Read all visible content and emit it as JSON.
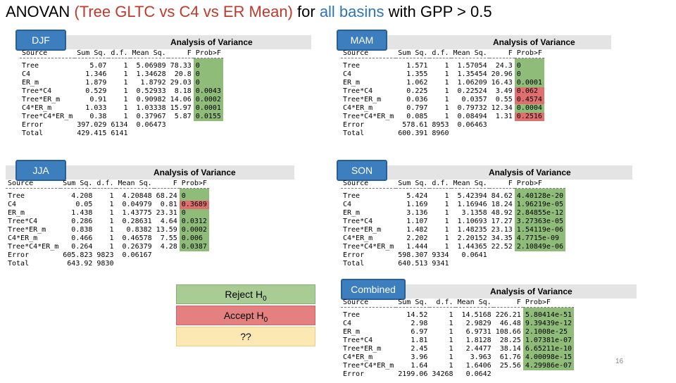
{
  "title": {
    "part1": "ANOVAN ",
    "part2": "(Tree GLTC vs C4 vs ER Mean)",
    "part3": " for ",
    "part4": "all basins",
    "part5": " with GPP > 0.5"
  },
  "panels": [
    {
      "season": "DJF",
      "heading": "Analysis of Variance",
      "columns": [
        "Source",
        "Sum Sq.",
        "d.f.",
        "Mean Sq.",
        "F",
        "Prob>F"
      ],
      "rows": [
        {
          "source": "Tree",
          "ss": "5.07",
          "df": "1",
          "ms": "5.06989",
          "f": "78.33",
          "p": "0",
          "hl": "g"
        },
        {
          "source": "C4",
          "ss": "1.346",
          "df": "1",
          "ms": "1.34628",
          "f": "20.8",
          "p": "0",
          "hl": "g"
        },
        {
          "source": "ER_m",
          "ss": "1.879",
          "df": "1",
          "ms": "1.8792",
          "f": "29.03",
          "p": "0",
          "hl": "g"
        },
        {
          "source": "Tree*C4",
          "ss": "0.529",
          "df": "1",
          "ms": "0.52933",
          "f": "8.18",
          "p": "0.0043",
          "hl": "g"
        },
        {
          "source": "Tree*ER_m",
          "ss": "0.91",
          "df": "1",
          "ms": "0.90982",
          "f": "14.06",
          "p": "0.0002",
          "hl": "g"
        },
        {
          "source": "C4*ER_m",
          "ss": "1.033",
          "df": "1",
          "ms": "1.03338",
          "f": "15.97",
          "p": "0.0001",
          "hl": "g"
        },
        {
          "source": "Tree*C4*ER_m",
          "ss": "0.38",
          "df": "1",
          "ms": "0.37967",
          "f": "5.87",
          "p": "0.0155",
          "hl": "g"
        },
        {
          "source": "Error",
          "ss": "397.029",
          "df": "6134",
          "ms": "0.06473",
          "f": "",
          "p": "",
          "hl": ""
        },
        {
          "source": "Total",
          "ss": "429.415",
          "df": "6141",
          "ms": "",
          "f": "",
          "p": "",
          "hl": ""
        }
      ]
    },
    {
      "season": "MAM",
      "heading": "Analysis of Variance",
      "columns": [
        "Source",
        "Sum Sq.",
        "d.f.",
        "Mean Sq.",
        "F",
        "Prob>F"
      ],
      "rows": [
        {
          "source": "Tree",
          "ss": "1.571",
          "df": "1",
          "ms": "1.57054",
          "f": "24.3",
          "p": "0",
          "hl": "g"
        },
        {
          "source": "C4",
          "ss": "1.355",
          "df": "1",
          "ms": "1.35454",
          "f": "20.96",
          "p": "0",
          "hl": "g"
        },
        {
          "source": "ER_m",
          "ss": "1.062",
          "df": "1",
          "ms": "1.06209",
          "f": "16.43",
          "p": "0.0001",
          "hl": "g"
        },
        {
          "source": "Tree*C4",
          "ss": "0.225",
          "df": "1",
          "ms": "0.22524",
          "f": "3.49",
          "p": "0.062",
          "hl": "r"
        },
        {
          "source": "Tree*ER_m",
          "ss": "0.036",
          "df": "1",
          "ms": "0.0357",
          "f": "0.55",
          "p": "0.4574",
          "hl": "r"
        },
        {
          "source": "C4*ER_m",
          "ss": "0.797",
          "df": "1",
          "ms": "0.79732",
          "f": "12.34",
          "p": "0.0004",
          "hl": "g"
        },
        {
          "source": "Tree*C4*ER_m",
          "ss": "0.085",
          "df": "1",
          "ms": "0.08494",
          "f": "1.31",
          "p": "0.2516",
          "hl": "r"
        },
        {
          "source": "Error",
          "ss": "578.61",
          "df": "8953",
          "ms": "0.06463",
          "f": "",
          "p": "",
          "hl": ""
        },
        {
          "source": "Total",
          "ss": "600.391",
          "df": "8960",
          "ms": "",
          "f": "",
          "p": "",
          "hl": ""
        }
      ]
    },
    {
      "season": "JJA",
      "heading": "Analysis of Variance",
      "columns": [
        "Source",
        "Sum Sq.",
        "d.f.",
        "Mean Sq.",
        "F",
        "Prob>F"
      ],
      "rows": [
        {
          "source": "Tree",
          "ss": "4.208",
          "df": "1",
          "ms": "4.20848",
          "f": "68.24",
          "p": "0",
          "hl": "g"
        },
        {
          "source": "C4",
          "ss": "0.05",
          "df": "1",
          "ms": "0.04979",
          "f": "0.81",
          "p": "0.3689",
          "hl": "r"
        },
        {
          "source": "ER_m",
          "ss": "1.438",
          "df": "1",
          "ms": "1.43775",
          "f": "23.31",
          "p": "0",
          "hl": "g"
        },
        {
          "source": "Tree*C4",
          "ss": "0.286",
          "df": "1",
          "ms": "0.28631",
          "f": "4.64",
          "p": "0.0312",
          "hl": "g"
        },
        {
          "source": "Tree*ER_m",
          "ss": "0.838",
          "df": "1",
          "ms": "0.8382",
          "f": "13.59",
          "p": "0.0002",
          "hl": "g"
        },
        {
          "source": "C4*ER_m",
          "ss": "0.466",
          "df": "1",
          "ms": "0.46578",
          "f": "7.55",
          "p": "0.006",
          "hl": "g"
        },
        {
          "source": "Tree*C4*ER_m",
          "ss": "0.264",
          "df": "1",
          "ms": "0.26379",
          "f": "4.28",
          "p": "0.0387",
          "hl": "g"
        },
        {
          "source": "Error",
          "ss": "605.823",
          "df": "9823",
          "ms": "0.06167",
          "f": "",
          "p": "",
          "hl": ""
        },
        {
          "source": "Total",
          "ss": "643.92",
          "df": "9830",
          "ms": "",
          "f": "",
          "p": "",
          "hl": ""
        }
      ]
    },
    {
      "season": "SON",
      "heading": "Analysis of Variance",
      "columns": [
        "Source",
        "Sum Sq.",
        "d.f.",
        "Mean Sq.",
        "F",
        "Prob>F"
      ],
      "rows": [
        {
          "source": "Tree",
          "ss": "5.424",
          "df": "1",
          "ms": "5.42394",
          "f": "84.62",
          "p": "4.40128e-20",
          "hl": "g"
        },
        {
          "source": "C4",
          "ss": "1.169",
          "df": "1",
          "ms": "1.16946",
          "f": "18.24",
          "p": "1.96219e-05",
          "hl": "g"
        },
        {
          "source": "ER_m",
          "ss": "3.136",
          "df": "1",
          "ms": "3.1358",
          "f": "48.92",
          "p": "2.84855e-12",
          "hl": "g"
        },
        {
          "source": "Tree*C4",
          "ss": "1.107",
          "df": "1",
          "ms": "1.10693",
          "f": "17.27",
          "p": "3.27363e-05",
          "hl": "g"
        },
        {
          "source": "Tree*ER_m",
          "ss": "1.482",
          "df": "1",
          "ms": "1.48235",
          "f": "23.13",
          "p": "1.54119e-06",
          "hl": "g"
        },
        {
          "source": "C4*ER_m",
          "ss": "2.202",
          "df": "1",
          "ms": "2.20152",
          "f": "34.35",
          "p": "4.7715e-09",
          "hl": "g"
        },
        {
          "source": "Tree*C4*ER_m",
          "ss": "1.444",
          "df": "1",
          "ms": "1.44365",
          "f": "22.52",
          "p": "2.10849e-06",
          "hl": "g"
        },
        {
          "source": "Error",
          "ss": "598.307",
          "df": "9334",
          "ms": "0.0641",
          "f": "",
          "p": "",
          "hl": ""
        },
        {
          "source": "Total",
          "ss": "640.513",
          "df": "9341",
          "ms": "",
          "f": "",
          "p": "",
          "hl": ""
        }
      ]
    },
    {
      "season": "Combined",
      "heading": "Analysis of Variance",
      "columns": [
        "Source",
        "Sum Sq.",
        "d.f.",
        "Mean Sq.",
        "F",
        "Prob>F"
      ],
      "rows": [
        {
          "source": "Tree",
          "ss": "14.52",
          "df": "1",
          "ms": "14.5168",
          "f": "226.21",
          "p": "5.80414e-51",
          "hl": "g"
        },
        {
          "source": "C4",
          "ss": "2.98",
          "df": "1",
          "ms": "2.9829",
          "f": "46.48",
          "p": "9.39439e-12",
          "hl": "g"
        },
        {
          "source": "ER_m",
          "ss": "6.97",
          "df": "1",
          "ms": "6.9731",
          "f": "108.66",
          "p": "2.1008e-25",
          "hl": "g"
        },
        {
          "source": "Tree*C4",
          "ss": "1.81",
          "df": "1",
          "ms": "1.8128",
          "f": "28.25",
          "p": "1.07381e-07",
          "hl": "g"
        },
        {
          "source": "Tree*ER_m",
          "ss": "2.45",
          "df": "1",
          "ms": "2.4477",
          "f": "38.14",
          "p": "6.65211e-10",
          "hl": "g"
        },
        {
          "source": "C4*ER_m",
          "ss": "3.96",
          "df": "1",
          "ms": "3.963",
          "f": "61.76",
          "p": "4.00098e-15",
          "hl": "g"
        },
        {
          "source": "Tree*C4*ER_m",
          "ss": "1.64",
          "df": "1",
          "ms": "1.6406",
          "f": "25.56",
          "p": "4.29986e-07",
          "hl": "g"
        },
        {
          "source": "Error",
          "ss": "2199.06",
          "df": "34268",
          "ms": "0.0642",
          "f": "",
          "p": "",
          "hl": ""
        }
      ]
    }
  ],
  "legend": {
    "reject": "Reject H",
    "accept": "Accept H",
    "subscript": "0",
    "unknown": "??"
  },
  "slide_number": "16",
  "colors": {
    "highlight_green": "#8fbc79",
    "highlight_red": "#e07070",
    "season_blue": "#3d7ebf",
    "legend_green": "#a8cc94",
    "legend_red": "#e58080",
    "legend_yellow": "#fbe8b2"
  }
}
